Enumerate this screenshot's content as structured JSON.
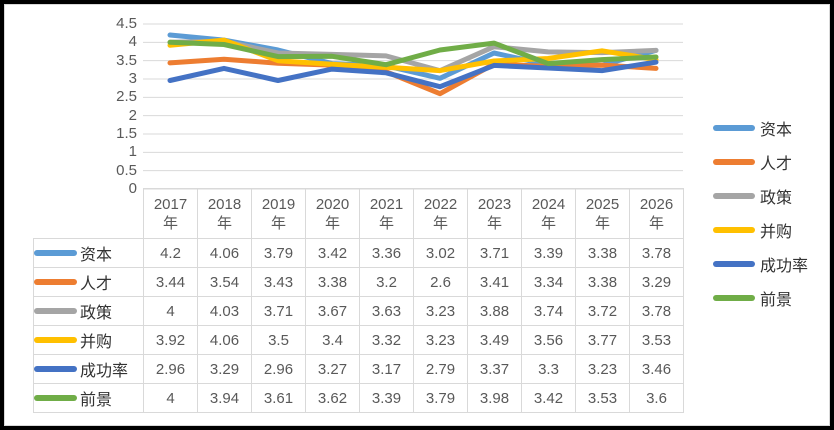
{
  "chart_data": {
    "type": "line",
    "title": "",
    "categories": [
      "2017",
      "2018",
      "2019",
      "2020",
      "2021",
      "2022",
      "2023",
      "2024",
      "2025",
      "2026"
    ],
    "category_suffix": "年",
    "series": [
      {
        "name": "资本",
        "color": "#5B9BD5",
        "values": [
          4.2,
          4.06,
          3.79,
          3.42,
          3.36,
          3.02,
          3.71,
          3.39,
          3.38,
          3.78
        ]
      },
      {
        "name": "人才",
        "color": "#ED7D31",
        "values": [
          3.44,
          3.54,
          3.43,
          3.38,
          3.2,
          2.6,
          3.41,
          3.34,
          3.38,
          3.29
        ]
      },
      {
        "name": "政策",
        "color": "#A5A5A5",
        "values": [
          4,
          4.03,
          3.71,
          3.67,
          3.63,
          3.23,
          3.88,
          3.74,
          3.72,
          3.78
        ]
      },
      {
        "name": "并购",
        "color": "#FFC000",
        "values": [
          3.92,
          4.06,
          3.5,
          3.4,
          3.32,
          3.23,
          3.49,
          3.56,
          3.77,
          3.53
        ]
      },
      {
        "name": "成功率",
        "color": "#4472C4",
        "values": [
          2.96,
          3.29,
          2.96,
          3.27,
          3.17,
          2.79,
          3.37,
          3.3,
          3.23,
          3.46
        ]
      },
      {
        "name": "前景",
        "color": "#70AD47",
        "values": [
          4,
          3.94,
          3.61,
          3.62,
          3.39,
          3.79,
          3.98,
          3.42,
          3.53,
          3.6
        ]
      }
    ],
    "ylim": [
      0,
      4.5
    ],
    "ytick_step": 0.5,
    "y_tick_labels": [
      "0",
      "0.5",
      "1",
      "1.5",
      "2",
      "2.5",
      "3",
      "3.5",
      "4",
      "4.5"
    ],
    "grid": "horizontal",
    "legend_position": "right",
    "legend_entries": [
      "资本",
      "人才",
      "政策",
      "并购",
      "成功率",
      "前景"
    ],
    "data_table_shown": true
  },
  "colors": {
    "grid_line": "#D9D9D9",
    "table_border": "#D9D9D9",
    "axis_text": "#595959",
    "label_text": "#333333",
    "frame_border": "#000000",
    "inner_border": "#D9D9D9",
    "background": "#FFFFFF"
  }
}
